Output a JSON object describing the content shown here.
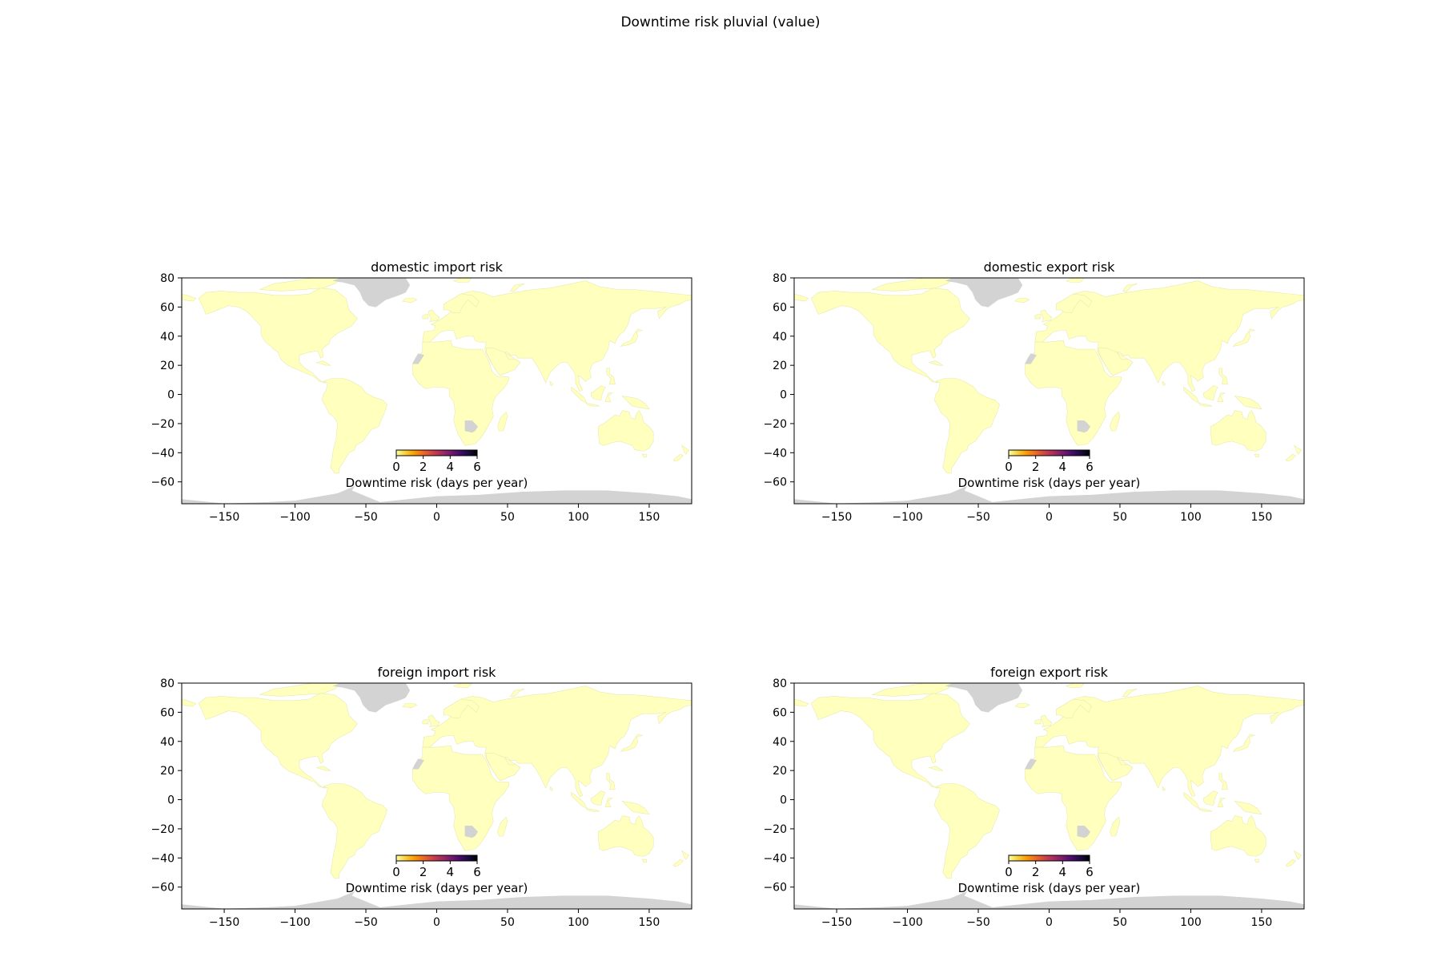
{
  "figure": {
    "title": "Downtime risk pluvial (value)"
  },
  "colors": {
    "land_fill": "#ffffbe",
    "land_edge": "#e9e9b0",
    "no_data": "#d3d3d3",
    "frame": "#000000",
    "colormap": "inferno_r",
    "colormap_stops": [
      "#fcffa4",
      "#f7d13d",
      "#fb9b06",
      "#ed6925",
      "#cf4446",
      "#a52c60",
      "#781c6d",
      "#4a0c6b",
      "#1b0c41",
      "#000004"
    ]
  },
  "chart_data": [
    {
      "type": "map",
      "title": "domestic import risk",
      "xlim": [
        -180,
        180
      ],
      "ylim": [
        -75,
        80
      ],
      "xticks": [
        -150,
        -100,
        -50,
        0,
        50,
        100,
        150
      ],
      "yticks": [
        80,
        60,
        40,
        20,
        0,
        -20,
        -40,
        -60
      ],
      "colorbar": {
        "label": "Downtime risk (days per year)",
        "ticks": [
          0,
          2,
          4,
          6
        ],
        "range": [
          0,
          6
        ]
      },
      "no_data_regions": [
        "Greenland",
        "Western Sahara",
        "Botswana",
        "Antarctica"
      ]
    },
    {
      "type": "map",
      "title": "domestic export risk",
      "xlim": [
        -180,
        180
      ],
      "ylim": [
        -75,
        80
      ],
      "xticks": [
        -150,
        -100,
        -50,
        0,
        50,
        100,
        150
      ],
      "yticks": [
        80,
        60,
        40,
        20,
        0,
        -20,
        -40,
        -60
      ],
      "colorbar": {
        "label": "Downtime risk (days per year)",
        "ticks": [
          0,
          2,
          4,
          6
        ],
        "range": [
          0,
          6
        ]
      },
      "no_data_regions": [
        "Greenland",
        "Western Sahara",
        "Botswana",
        "Antarctica"
      ]
    },
    {
      "type": "map",
      "title": "foreign import risk",
      "xlim": [
        -180,
        180
      ],
      "ylim": [
        -75,
        80
      ],
      "xticks": [
        -150,
        -100,
        -50,
        0,
        50,
        100,
        150
      ],
      "yticks": [
        80,
        60,
        40,
        20,
        0,
        -20,
        -40,
        -60
      ],
      "colorbar": {
        "label": "Downtime risk (days per year)",
        "ticks": [
          0,
          2,
          4,
          6
        ],
        "range": [
          0,
          6
        ]
      },
      "no_data_regions": [
        "Greenland",
        "Western Sahara",
        "Botswana",
        "Antarctica"
      ]
    },
    {
      "type": "map",
      "title": "foreign export risk",
      "xlim": [
        -180,
        180
      ],
      "ylim": [
        -75,
        80
      ],
      "xticks": [
        -150,
        -100,
        -50,
        0,
        50,
        100,
        150
      ],
      "yticks": [
        80,
        60,
        40,
        20,
        0,
        -20,
        -40,
        -60
      ],
      "colorbar": {
        "label": "Downtime risk (days per year)",
        "ticks": [
          0,
          2,
          4,
          6
        ],
        "range": [
          0,
          6
        ]
      },
      "no_data_regions": [
        "Greenland",
        "Western Sahara",
        "Botswana",
        "Antarctica"
      ]
    }
  ]
}
